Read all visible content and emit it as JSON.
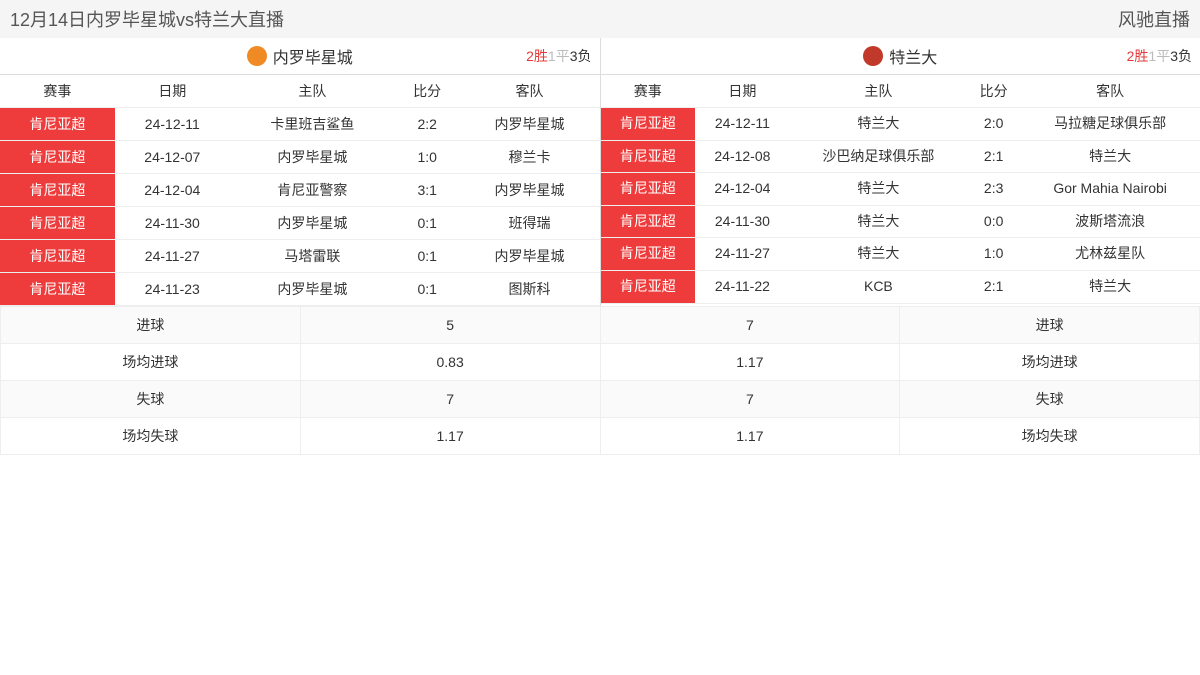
{
  "topbar": {
    "title": "12月14日内罗毕星城vs特兰大直播",
    "brand": "风驰直播"
  },
  "columns": {
    "league": "赛事",
    "date": "日期",
    "home": "主队",
    "score": "比分",
    "away": "客队"
  },
  "left": {
    "team_name": "内罗毕星城",
    "logo_color": "#f08a24",
    "record": {
      "win": "2胜",
      "draw": "1平",
      "loss": "3负"
    },
    "matches": [
      {
        "league": "肯尼亚超",
        "date": "24-12-11",
        "home": "卡里班吉鲨鱼",
        "score": "2:2",
        "away": "内罗毕星城"
      },
      {
        "league": "肯尼亚超",
        "date": "24-12-07",
        "home": "内罗毕星城",
        "score": "1:0",
        "away": "穆兰卡"
      },
      {
        "league": "肯尼亚超",
        "date": "24-12-04",
        "home": "肯尼亚警察",
        "score": "3:1",
        "away": "内罗毕星城"
      },
      {
        "league": "肯尼亚超",
        "date": "24-11-30",
        "home": "内罗毕星城",
        "score": "0:1",
        "away": "班得瑞"
      },
      {
        "league": "肯尼亚超",
        "date": "24-11-27",
        "home": "马塔雷联",
        "score": "0:1",
        "away": "内罗毕星城"
      },
      {
        "league": "肯尼亚超",
        "date": "24-11-23",
        "home": "内罗毕星城",
        "score": "0:1",
        "away": "图斯科"
      }
    ]
  },
  "right": {
    "team_name": "特兰大",
    "logo_color": "#c0392b",
    "record": {
      "win": "2胜",
      "draw": "1平",
      "loss": "3负"
    },
    "matches": [
      {
        "league": "肯尼亚超",
        "date": "24-12-11",
        "home": "特兰大",
        "score": "2:0",
        "away": "马拉糖足球俱乐部",
        "two_line": true
      },
      {
        "league": "肯尼亚超",
        "date": "24-12-08",
        "home": "沙巴纳足球俱乐部",
        "score": "2:1",
        "away": "特兰大",
        "two_line": true
      },
      {
        "league": "肯尼亚超",
        "date": "24-12-04",
        "home": "特兰大",
        "score": "2:3",
        "away": "Gor Mahia Nairobi",
        "two_line": true
      },
      {
        "league": "肯尼亚超",
        "date": "24-11-30",
        "home": "特兰大",
        "score": "0:0",
        "away": "波斯塔流浪",
        "two_line": true
      },
      {
        "league": "肯尼亚超",
        "date": "24-11-27",
        "home": "特兰大",
        "score": "1:0",
        "away": "尤林兹星队",
        "two_line": true
      },
      {
        "league": "肯尼亚超",
        "date": "24-11-22",
        "home": "KCB",
        "score": "2:1",
        "away": "特兰大",
        "two_line": true
      }
    ]
  },
  "stats": {
    "rows": [
      {
        "label": "进球",
        "left": "5",
        "right": "7"
      },
      {
        "label": "场均进球",
        "left": "0.83",
        "right": "1.17"
      },
      {
        "label": "失球",
        "left": "7",
        "right": "7"
      },
      {
        "label": "场均失球",
        "left": "1.17",
        "right": "1.17"
      }
    ]
  }
}
